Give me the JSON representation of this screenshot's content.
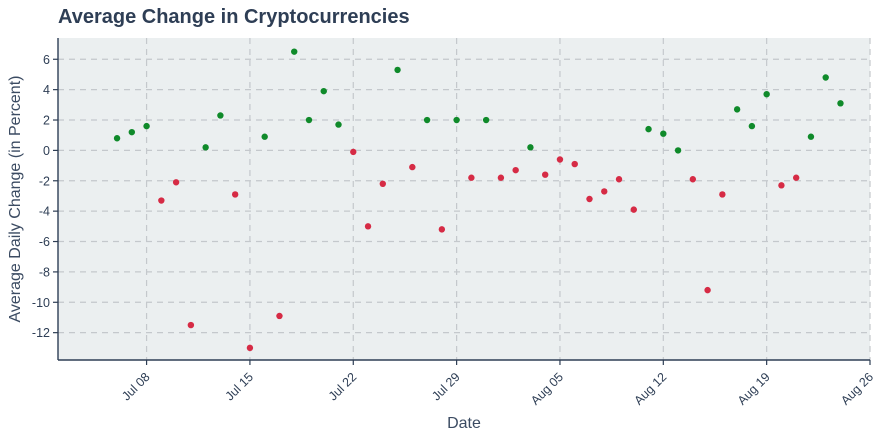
{
  "chart_data": {
    "type": "scatter",
    "title": "Average Change in Cryptocurrencies",
    "xlabel": "Date",
    "ylabel": "Average Daily Change (in Percent)",
    "x_ticks": [
      "Jul 08",
      "Jul 15",
      "Jul 22",
      "Jul 29",
      "Aug 05",
      "Aug 12",
      "Aug 19",
      "Aug 26"
    ],
    "y_ticks": [
      "6",
      "4",
      "2",
      "0",
      "-2",
      "-4",
      "-6",
      "-8",
      "-10",
      "-12"
    ],
    "ylim": [
      -13.8,
      7.4
    ],
    "xlim": [
      "2024-07-02",
      "2024-08-26"
    ],
    "grid": true,
    "colors": {
      "positive": "#0f8a2a",
      "negative": "#d62b45",
      "plot_bg": "#ebeff0"
    },
    "points": [
      {
        "x": "2024-07-06",
        "y": 0.8
      },
      {
        "x": "2024-07-07",
        "y": 1.2
      },
      {
        "x": "2024-07-08",
        "y": 1.6
      },
      {
        "x": "2024-07-09",
        "y": -3.3
      },
      {
        "x": "2024-07-10",
        "y": -2.1
      },
      {
        "x": "2024-07-11",
        "y": -11.5
      },
      {
        "x": "2024-07-12",
        "y": 0.2
      },
      {
        "x": "2024-07-13",
        "y": 2.3
      },
      {
        "x": "2024-07-14",
        "y": -2.9
      },
      {
        "x": "2024-07-15",
        "y": -13.0
      },
      {
        "x": "2024-07-16",
        "y": 0.9
      },
      {
        "x": "2024-07-17",
        "y": -10.9
      },
      {
        "x": "2024-07-18",
        "y": 6.5
      },
      {
        "x": "2024-07-19",
        "y": 2.0
      },
      {
        "x": "2024-07-20",
        "y": 3.9
      },
      {
        "x": "2024-07-21",
        "y": 1.7
      },
      {
        "x": "2024-07-22",
        "y": -0.1
      },
      {
        "x": "2024-07-23",
        "y": -5.0
      },
      {
        "x": "2024-07-24",
        "y": -2.2
      },
      {
        "x": "2024-07-25",
        "y": 5.3
      },
      {
        "x": "2024-07-26",
        "y": -1.1
      },
      {
        "x": "2024-07-27",
        "y": 2.0
      },
      {
        "x": "2024-07-28",
        "y": -5.2
      },
      {
        "x": "2024-07-29",
        "y": 2.0
      },
      {
        "x": "2024-07-30",
        "y": -1.8
      },
      {
        "x": "2024-07-31",
        "y": 2.0
      },
      {
        "x": "2024-08-01",
        "y": -1.8
      },
      {
        "x": "2024-08-02",
        "y": -1.3
      },
      {
        "x": "2024-08-03",
        "y": 0.2
      },
      {
        "x": "2024-08-04",
        "y": -1.6
      },
      {
        "x": "2024-08-05",
        "y": -0.6
      },
      {
        "x": "2024-08-06",
        "y": -0.9
      },
      {
        "x": "2024-08-07",
        "y": -3.2
      },
      {
        "x": "2024-08-08",
        "y": -2.7
      },
      {
        "x": "2024-08-09",
        "y": -1.9
      },
      {
        "x": "2024-08-10",
        "y": -3.9
      },
      {
        "x": "2024-08-11",
        "y": 1.4
      },
      {
        "x": "2024-08-12",
        "y": 1.1
      },
      {
        "x": "2024-08-13",
        "y": 0.0
      },
      {
        "x": "2024-08-14",
        "y": -1.9
      },
      {
        "x": "2024-08-15",
        "y": -9.2
      },
      {
        "x": "2024-08-16",
        "y": -2.9
      },
      {
        "x": "2024-08-17",
        "y": 2.7
      },
      {
        "x": "2024-08-18",
        "y": 1.6
      },
      {
        "x": "2024-08-19",
        "y": 3.7
      },
      {
        "x": "2024-08-20",
        "y": -2.3
      },
      {
        "x": "2024-08-21",
        "y": -1.8
      },
      {
        "x": "2024-08-22",
        "y": 0.9
      },
      {
        "x": "2024-08-23",
        "y": 4.8
      },
      {
        "x": "2024-08-24",
        "y": 3.1
      }
    ]
  }
}
